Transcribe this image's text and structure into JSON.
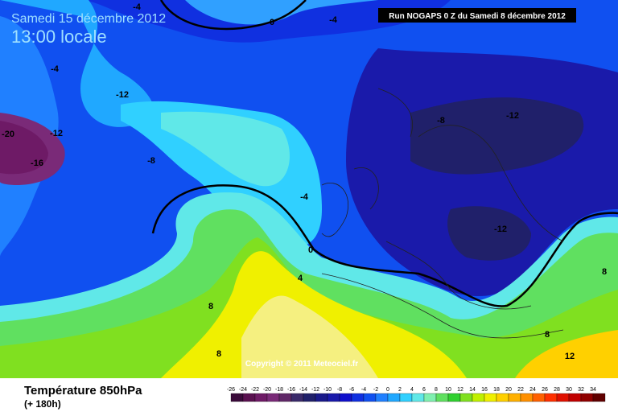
{
  "header": {
    "date": "Samedi 15 décembre 2012",
    "time": "13:00 locale",
    "run": "Run NOGAPS 0 Z du Samedi 8 décembre 2012"
  },
  "copyright": "Copyright © 2011 Meteociel.fr",
  "footer": {
    "title": "Température 850hPa",
    "range": "(+ 180h)"
  },
  "contour_labels": [
    -4,
    0,
    -4,
    -4,
    -12,
    -12,
    -20,
    -16,
    -8,
    -8,
    -12,
    -4,
    -12,
    0,
    4,
    8,
    8,
    8,
    8,
    12
  ],
  "scale": {
    "labels": [
      -26,
      -24,
      -22,
      -20,
      -18,
      -16,
      -14,
      -12,
      -10,
      -8,
      -6,
      -4,
      -2,
      0,
      2,
      4,
      6,
      8,
      10,
      12,
      14,
      16,
      18,
      20,
      22,
      24,
      26,
      28,
      30,
      32,
      34
    ],
    "colors": [
      "#3a0a3a",
      "#5a1050",
      "#6e1a66",
      "#7a2a78",
      "#602868",
      "#3a2a6a",
      "#20206a",
      "#1a1a8a",
      "#1a1aaa",
      "#1010cc",
      "#1030e0",
      "#1050f0",
      "#2080ff",
      "#20a8ff",
      "#30d0ff",
      "#60e8e8",
      "#80f0b0",
      "#60e060",
      "#30d030",
      "#80e020",
      "#c0f000",
      "#f0f000",
      "#ffd000",
      "#ffb000",
      "#ff9000",
      "#ff6000",
      "#ff3000",
      "#e01000",
      "#c00000",
      "#900000",
      "#600000"
    ]
  }
}
